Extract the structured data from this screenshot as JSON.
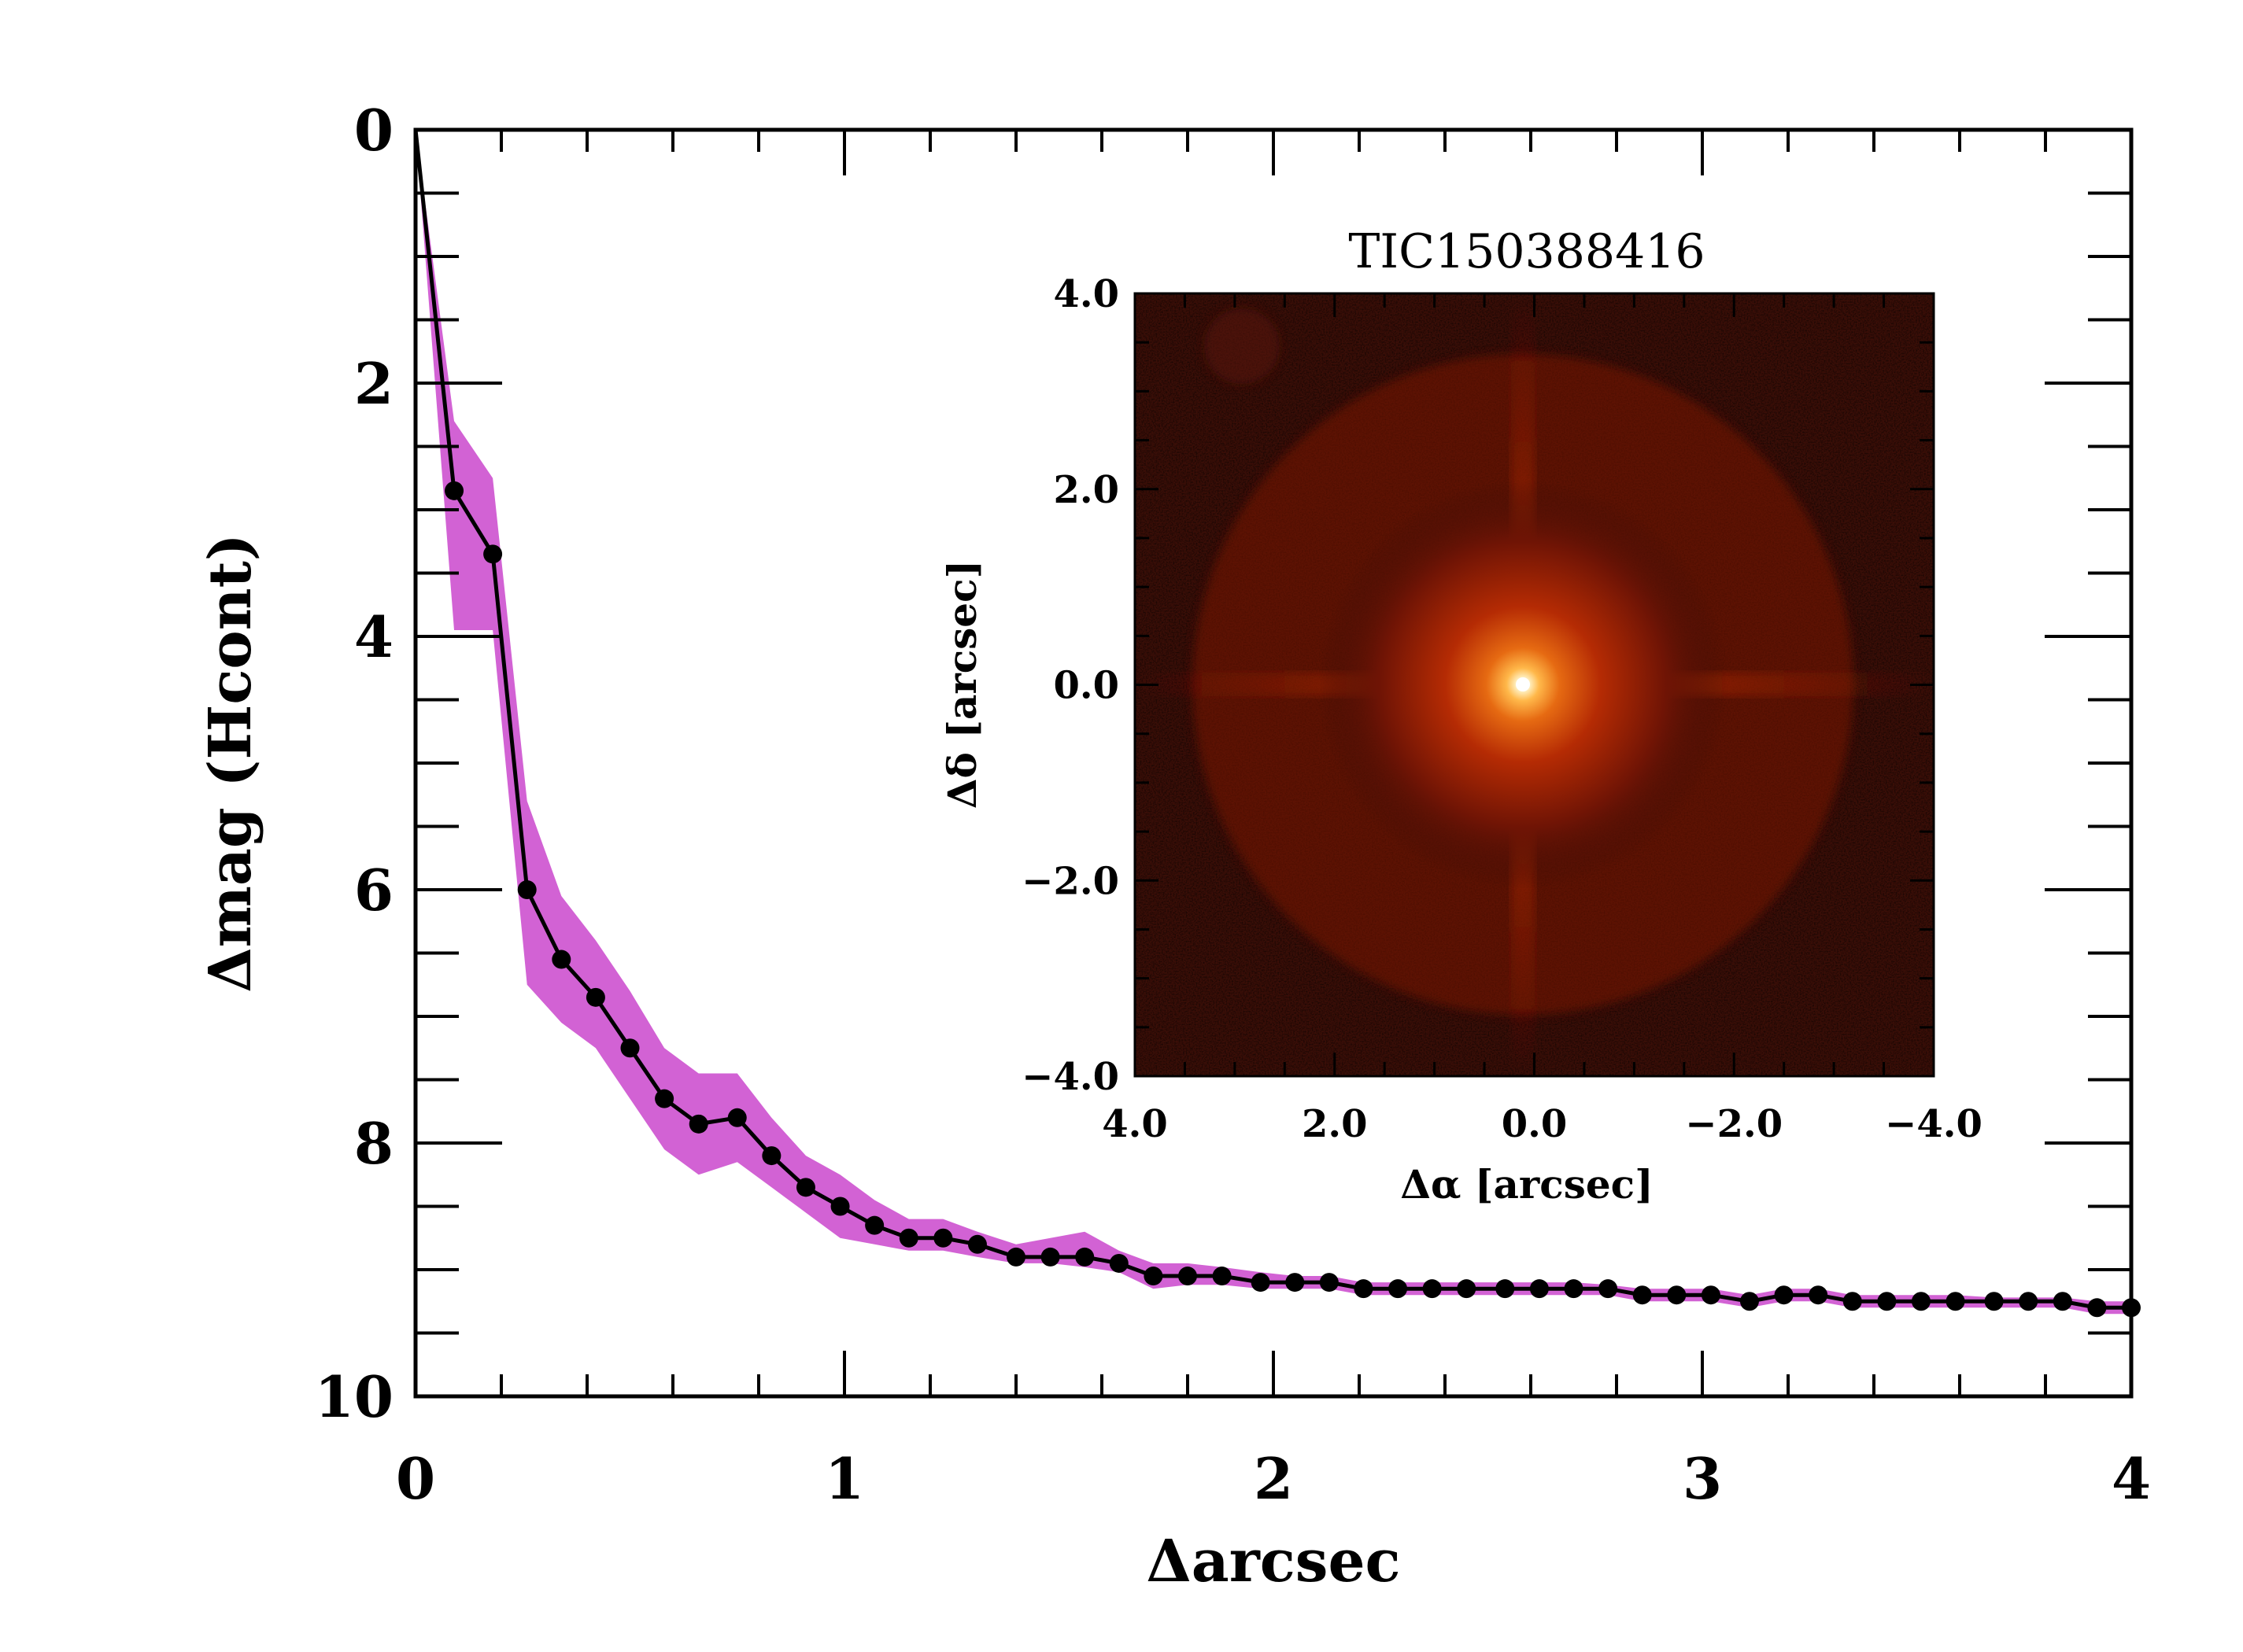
{
  "chart_data": [
    {
      "type": "line",
      "title": "",
      "xlabel": "Δarcsec",
      "ylabel": "Δmag (Hcont)",
      "xlim": [
        0,
        4
      ],
      "ylim": [
        10,
        0
      ],
      "y_axis_inverted": true,
      "x_ticks": [
        0,
        1,
        2,
        3,
        4
      ],
      "x_tick_labels": [
        "0",
        "1",
        "2",
        "3",
        "4"
      ],
      "y_ticks": [
        0,
        2,
        4,
        6,
        8,
        10
      ],
      "y_tick_labels": [
        "0",
        "2",
        "4",
        "6",
        "8",
        "10"
      ],
      "grid": false,
      "legend": "none",
      "colors": {
        "line": "#000000",
        "band": "#d262d4"
      },
      "x": [
        0.0,
        0.09,
        0.18,
        0.26,
        0.34,
        0.42,
        0.5,
        0.58,
        0.66,
        0.75,
        0.83,
        0.91,
        0.99,
        1.07,
        1.15,
        1.23,
        1.31,
        1.4,
        1.48,
        1.56,
        1.64,
        1.72,
        1.8,
        1.88,
        1.97,
        2.05,
        2.13,
        2.21,
        2.29,
        2.37,
        2.45,
        2.54,
        2.62,
        2.7,
        2.78,
        2.86,
        2.94,
        3.02,
        3.11,
        3.19,
        3.27,
        3.35,
        3.43,
        3.51,
        3.59,
        3.68,
        3.76,
        3.84,
        3.92,
        4.0
      ],
      "series": [
        {
          "values": [
            0.0,
            2.85,
            3.35,
            6.0,
            6.55,
            6.85,
            7.25,
            7.65,
            7.85,
            7.8,
            8.1,
            8.35,
            8.5,
            8.65,
            8.75,
            8.75,
            8.8,
            8.9,
            8.9,
            8.9,
            8.95,
            9.05,
            9.05,
            9.05,
            9.1,
            9.1,
            9.1,
            9.15,
            9.15,
            9.15,
            9.15,
            9.15,
            9.15,
            9.15,
            9.15,
            9.2,
            9.2,
            9.2,
            9.25,
            9.2,
            9.2,
            9.25,
            9.25,
            9.25,
            9.25,
            9.25,
            9.25,
            9.25,
            9.3,
            9.3
          ],
          "lower": [
            0.0,
            2.3,
            2.75,
            5.3,
            6.05,
            6.4,
            6.8,
            7.25,
            7.45,
            7.45,
            7.8,
            8.1,
            8.25,
            8.45,
            8.6,
            8.6,
            8.7,
            8.8,
            8.75,
            8.7,
            8.85,
            8.95,
            8.95,
            8.98,
            9.02,
            9.05,
            9.05,
            9.1,
            9.1,
            9.1,
            9.1,
            9.1,
            9.1,
            9.1,
            9.12,
            9.15,
            9.15,
            9.15,
            9.2,
            9.15,
            9.15,
            9.2,
            9.2,
            9.2,
            9.2,
            9.22,
            9.22,
            9.22,
            9.25,
            9.25
          ],
          "upper": [
            0.0,
            3.95,
            3.95,
            6.75,
            7.05,
            7.25,
            7.65,
            8.05,
            8.25,
            8.15,
            8.35,
            8.55,
            8.75,
            8.8,
            8.85,
            8.85,
            8.9,
            8.95,
            8.95,
            8.98,
            9.02,
            9.15,
            9.12,
            9.12,
            9.15,
            9.15,
            9.15,
            9.2,
            9.2,
            9.2,
            9.2,
            9.2,
            9.2,
            9.2,
            9.2,
            9.25,
            9.25,
            9.25,
            9.3,
            9.25,
            9.25,
            9.3,
            9.3,
            9.3,
            9.3,
            9.3,
            9.3,
            9.3,
            9.35,
            9.35
          ]
        }
      ]
    },
    {
      "type": "heatmap",
      "title": "TIC150388416",
      "xlabel": "Δα [arcsec]",
      "ylabel": "Δδ [arcsec]",
      "xlim": [
        4.0,
        -4.0
      ],
      "ylim": [
        -4.0,
        4.0
      ],
      "x_ticks": [
        4.0,
        2.0,
        0.0,
        -2.0,
        -4.0
      ],
      "x_tick_labels": [
        "4.0",
        "2.0",
        "0.0",
        "−2.0",
        "−4.0"
      ],
      "y_ticks": [
        4.0,
        2.0,
        0.0,
        -2.0,
        -4.0
      ],
      "y_tick_labels": [
        "4.0",
        "2.0",
        "0.0",
        "−2.0",
        "−4.0"
      ],
      "colormap": "red-temperature",
      "colors": {
        "background": "#2c0a06",
        "halo": "#a61c02",
        "core": "#ffffff"
      },
      "source_position": [
        0.0,
        0.0
      ]
    }
  ]
}
